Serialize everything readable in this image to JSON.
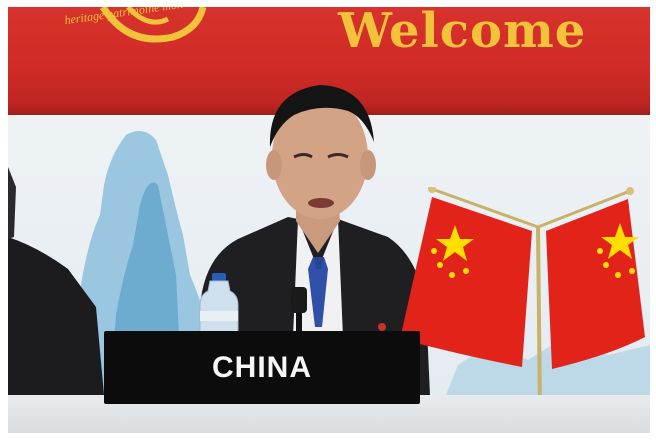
{
  "banner": {
    "welcome_text": "Welcome",
    "emblem_text": "heritage patrimoine mon"
  },
  "nameplate": {
    "country": "CHINA"
  },
  "colors": {
    "banner_red": "#cf2a26",
    "banner_gold": "#f2c23a",
    "flag_red": "#e2231a",
    "flag_star": "#ffde00",
    "nameplate_black": "#0c0c0c"
  },
  "scene": {
    "icons": [
      "unesco-emblem-icon",
      "china-flag-icon",
      "microphone-icon",
      "water-bottle-icon"
    ]
  }
}
